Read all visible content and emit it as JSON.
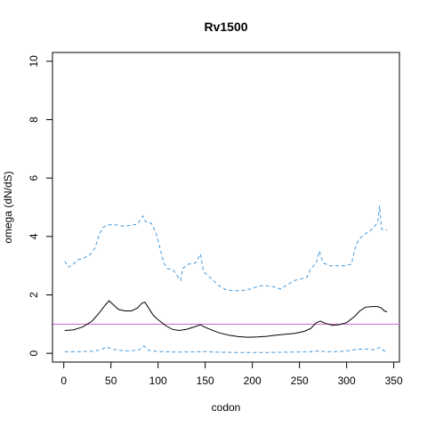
{
  "chart_data": {
    "type": "line",
    "title": "Rv1500",
    "xlabel": "codon",
    "ylabel": "omega (dN/dS)",
    "xlim": [
      -12,
      356
    ],
    "ylim": [
      -0.3,
      10.3
    ],
    "x_ticks": [
      0,
      50,
      100,
      150,
      200,
      250,
      300,
      350
    ],
    "y_ticks": [
      0,
      2,
      4,
      6,
      8,
      10
    ],
    "reference_line": {
      "y": 1,
      "color": "#cc66cc"
    },
    "series": [
      {
        "style": "solid",
        "color": "#000000",
        "points": [
          [
            1,
            0.78
          ],
          [
            10,
            0.8
          ],
          [
            20,
            0.9
          ],
          [
            30,
            1.1
          ],
          [
            38,
            1.4
          ],
          [
            44,
            1.65
          ],
          [
            48,
            1.8
          ],
          [
            53,
            1.65
          ],
          [
            58,
            1.5
          ],
          [
            65,
            1.45
          ],
          [
            72,
            1.45
          ],
          [
            78,
            1.55
          ],
          [
            83,
            1.72
          ],
          [
            86,
            1.75
          ],
          [
            90,
            1.55
          ],
          [
            95,
            1.3
          ],
          [
            100,
            1.15
          ],
          [
            108,
            0.95
          ],
          [
            115,
            0.82
          ],
          [
            122,
            0.78
          ],
          [
            130,
            0.82
          ],
          [
            138,
            0.9
          ],
          [
            145,
            0.98
          ],
          [
            148,
            0.92
          ],
          [
            155,
            0.82
          ],
          [
            165,
            0.7
          ],
          [
            175,
            0.62
          ],
          [
            185,
            0.57
          ],
          [
            195,
            0.55
          ],
          [
            205,
            0.56
          ],
          [
            215,
            0.58
          ],
          [
            225,
            0.62
          ],
          [
            235,
            0.65
          ],
          [
            245,
            0.68
          ],
          [
            255,
            0.75
          ],
          [
            262,
            0.85
          ],
          [
            268,
            1.05
          ],
          [
            272,
            1.1
          ],
          [
            278,
            1.02
          ],
          [
            285,
            0.96
          ],
          [
            292,
            0.98
          ],
          [
            300,
            1.05
          ],
          [
            308,
            1.25
          ],
          [
            314,
            1.45
          ],
          [
            320,
            1.58
          ],
          [
            327,
            1.6
          ],
          [
            333,
            1.6
          ],
          [
            337,
            1.55
          ],
          [
            340,
            1.45
          ],
          [
            343,
            1.42
          ]
        ]
      },
      {
        "style": "dashed",
        "color": "#4499dd",
        "points": [
          [
            1,
            3.15
          ],
          [
            5,
            2.95
          ],
          [
            10,
            3.05
          ],
          [
            15,
            3.2
          ],
          [
            20,
            3.25
          ],
          [
            27,
            3.35
          ],
          [
            33,
            3.6
          ],
          [
            37,
            4.0
          ],
          [
            41,
            4.3
          ],
          [
            47,
            4.4
          ],
          [
            55,
            4.4
          ],
          [
            62,
            4.35
          ],
          [
            70,
            4.38
          ],
          [
            78,
            4.42
          ],
          [
            84,
            4.7
          ],
          [
            87,
            4.5
          ],
          [
            93,
            4.45
          ],
          [
            98,
            4.1
          ],
          [
            102,
            3.6
          ],
          [
            106,
            3.1
          ],
          [
            110,
            2.9
          ],
          [
            116,
            2.85
          ],
          [
            124,
            2.5
          ],
          [
            126,
            2.9
          ],
          [
            132,
            3.05
          ],
          [
            140,
            3.1
          ],
          [
            145,
            3.4
          ],
          [
            148,
            2.8
          ],
          [
            155,
            2.6
          ],
          [
            165,
            2.3
          ],
          [
            172,
            2.18
          ],
          [
            180,
            2.14
          ],
          [
            190,
            2.15
          ],
          [
            200,
            2.22
          ],
          [
            206,
            2.3
          ],
          [
            212,
            2.32
          ],
          [
            220,
            2.3
          ],
          [
            230,
            2.2
          ],
          [
            237,
            2.35
          ],
          [
            245,
            2.5
          ],
          [
            252,
            2.55
          ],
          [
            258,
            2.6
          ],
          [
            262,
            2.9
          ],
          [
            268,
            3.1
          ],
          [
            271,
            3.5
          ],
          [
            275,
            3.1
          ],
          [
            282,
            3.0
          ],
          [
            290,
            3.0
          ],
          [
            298,
            3.0
          ],
          [
            305,
            3.05
          ],
          [
            309,
            3.6
          ],
          [
            313,
            3.9
          ],
          [
            318,
            4.05
          ],
          [
            325,
            4.2
          ],
          [
            330,
            4.35
          ],
          [
            333,
            4.5
          ],
          [
            335,
            5.05
          ],
          [
            337,
            4.25
          ],
          [
            340,
            4.22
          ],
          [
            343,
            4.22
          ]
        ]
      },
      {
        "style": "dashed",
        "color": "#4499dd",
        "points": [
          [
            1,
            0.05
          ],
          [
            10,
            0.05
          ],
          [
            20,
            0.06
          ],
          [
            30,
            0.07
          ],
          [
            40,
            0.12
          ],
          [
            45,
            0.22
          ],
          [
            50,
            0.15
          ],
          [
            60,
            0.1
          ],
          [
            70,
            0.08
          ],
          [
            80,
            0.12
          ],
          [
            85,
            0.25
          ],
          [
            90,
            0.1
          ],
          [
            100,
            0.06
          ],
          [
            120,
            0.04
          ],
          [
            140,
            0.05
          ],
          [
            150,
            0.06
          ],
          [
            160,
            0.04
          ],
          [
            180,
            0.03
          ],
          [
            200,
            0.03
          ],
          [
            220,
            0.03
          ],
          [
            240,
            0.04
          ],
          [
            260,
            0.05
          ],
          [
            270,
            0.08
          ],
          [
            280,
            0.05
          ],
          [
            290,
            0.06
          ],
          [
            300,
            0.08
          ],
          [
            310,
            0.13
          ],
          [
            320,
            0.15
          ],
          [
            330,
            0.12
          ],
          [
            335,
            0.2
          ],
          [
            340,
            0.08
          ],
          [
            343,
            0.06
          ]
        ]
      }
    ]
  }
}
